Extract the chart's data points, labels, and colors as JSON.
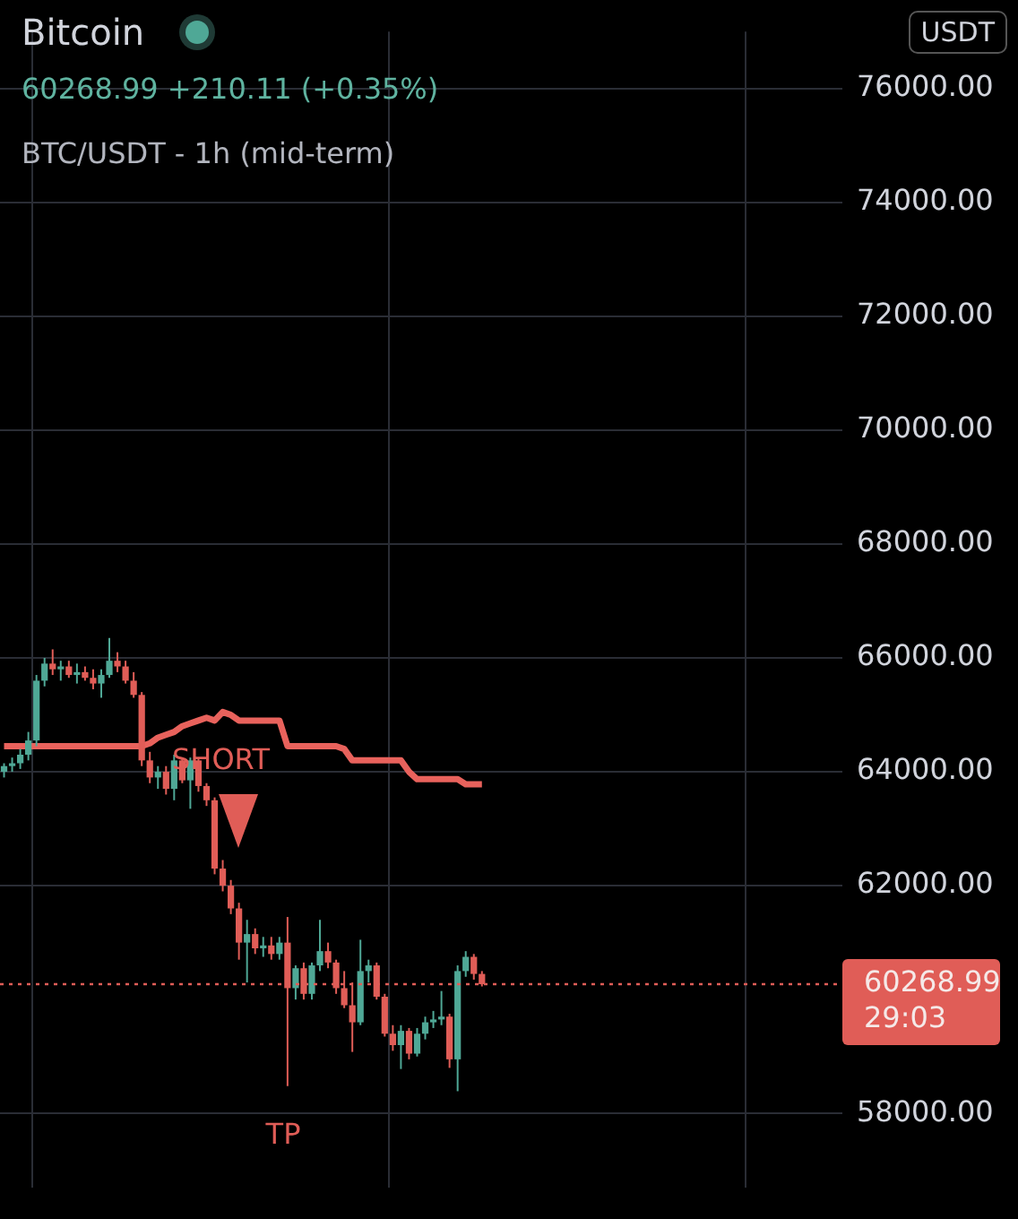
{
  "chart_data": {
    "type": "candlestick",
    "title": "Bitcoin",
    "subtitle": "60268.99 +210.11 (+0.35%)",
    "annotations": [
      "BTC/USDT - 1h (mid-term)",
      "SHORT",
      "TP",
      "USDT",
      "29:03"
    ],
    "categories": [
      null,
      null,
      null,
      null,
      null,
      null,
      null,
      null,
      null,
      null,
      null,
      null,
      null,
      null,
      null,
      null,
      null,
      null,
      null,
      null,
      null,
      null,
      null,
      null,
      null,
      null,
      null,
      null,
      null,
      null,
      null,
      null,
      null,
      null,
      null,
      null,
      null,
      null,
      null,
      null,
      null,
      null,
      null,
      null,
      null,
      null,
      null,
      null,
      null,
      null,
      null,
      null,
      null,
      null,
      null,
      null,
      null,
      null,
      null,
      null,
      null,
      null,
      null,
      null,
      null,
      null,
      null,
      null,
      null,
      null,
      null,
      null,
      null,
      null,
      null,
      null,
      null,
      null,
      null,
      null,
      null,
      null,
      null,
      null,
      null,
      null,
      null,
      null,
      null,
      null,
      null,
      null,
      null,
      null,
      null,
      null,
      null,
      null,
      null,
      null,
      null,
      null,
      null,
      null
    ],
    "ohlc": [
      [
        64000,
        64150,
        63900,
        64100
      ],
      [
        64100,
        64250,
        64000,
        64150
      ],
      [
        64150,
        64400,
        64050,
        64300
      ],
      [
        64300,
        64700,
        64200,
        64550
      ],
      [
        64550,
        65700,
        64450,
        65600
      ],
      [
        65600,
        66000,
        65500,
        65900
      ],
      [
        65900,
        66150,
        65700,
        65800
      ],
      [
        65800,
        65950,
        65600,
        65850
      ],
      [
        65850,
        65950,
        65650,
        65700
      ],
      [
        65700,
        65900,
        65550,
        65750
      ],
      [
        65750,
        65850,
        65600,
        65650
      ],
      [
        65650,
        65800,
        65450,
        65550
      ],
      [
        65550,
        65800,
        65300,
        65700
      ],
      [
        65700,
        66350,
        65650,
        65950
      ],
      [
        65950,
        66100,
        65750,
        65850
      ],
      [
        65850,
        65950,
        65550,
        65600
      ],
      [
        65600,
        65750,
        65300,
        65350
      ],
      [
        65350,
        65400,
        64100,
        64200
      ],
      [
        64200,
        64350,
        63800,
        63900
      ],
      [
        63900,
        64100,
        63700,
        64000
      ],
      [
        64000,
        64100,
        63600,
        63700
      ],
      [
        63700,
        64300,
        63500,
        64200
      ],
      [
        64200,
        64250,
        63800,
        63850
      ],
      [
        63850,
        64250,
        63350,
        64200
      ],
      [
        64200,
        64250,
        63650,
        63750
      ],
      [
        63750,
        63800,
        63400,
        63500
      ],
      [
        63500,
        63550,
        62200,
        62300
      ],
      [
        62300,
        62450,
        61900,
        62000
      ],
      [
        62000,
        62100,
        61500,
        61600
      ],
      [
        61600,
        61700,
        60700,
        61000
      ],
      [
        61000,
        61400,
        60300,
        61150
      ],
      [
        61150,
        61250,
        60800,
        60900
      ],
      [
        60900,
        61100,
        60750,
        60950
      ],
      [
        60950,
        61100,
        60700,
        60800
      ],
      [
        60800,
        61100,
        60700,
        61000
      ],
      [
        61000,
        61450,
        58480,
        60200
      ],
      [
        60200,
        60600,
        60000,
        60550
      ],
      [
        60550,
        60650,
        60000,
        60100
      ],
      [
        60100,
        60650,
        60000,
        60600
      ],
      [
        60600,
        61400,
        60500,
        60850
      ],
      [
        60850,
        61000,
        60550,
        60650
      ],
      [
        60650,
        60700,
        60100,
        60200
      ],
      [
        60200,
        60500,
        59850,
        59900
      ],
      [
        59900,
        60300,
        59080,
        59600
      ],
      [
        59600,
        61050,
        59550,
        60500
      ],
      [
        60500,
        60700,
        60300,
        60600
      ],
      [
        60600,
        60650,
        60000,
        60050
      ],
      [
        60050,
        60100,
        59350,
        59400
      ],
      [
        59400,
        59550,
        59100,
        59200
      ],
      [
        59200,
        59550,
        58780,
        59450
      ],
      [
        59450,
        59500,
        58950,
        59050
      ],
      [
        59050,
        59500,
        59000,
        59400
      ],
      [
        59400,
        59700,
        59300,
        59600
      ],
      [
        59600,
        59800,
        59500,
        59650
      ],
      [
        59650,
        60150,
        59550,
        59700
      ],
      [
        59700,
        59750,
        58800,
        58950
      ],
      [
        58950,
        60600,
        58390,
        60500
      ],
      [
        60500,
        60850,
        60400,
        60750
      ],
      [
        60750,
        60800,
        60350,
        60450
      ],
      [
        60450,
        60500,
        60230,
        60268.99
      ],
      null,
      null,
      null,
      null,
      null,
      null,
      null,
      null,
      null,
      null,
      null,
      null,
      null,
      null,
      null,
      null,
      null,
      null,
      null,
      null,
      null,
      null,
      null,
      null,
      null,
      null,
      null,
      null,
      null,
      null,
      null,
      null,
      null,
      null,
      null,
      null,
      null,
      null,
      null,
      null,
      null,
      null,
      null,
      null
    ],
    "colors": [
      "#4fa896",
      "#4fa896",
      "#4fa896",
      "#4fa896",
      "#4fa896",
      "#4fa896",
      "#e05d57",
      "#4fa896",
      "#e05d57",
      "#4fa896",
      "#e05d57",
      "#e05d57",
      "#4fa896",
      "#4fa896",
      "#e05d57",
      "#e05d57",
      "#e05d57",
      "#e05d57",
      "#e05d57",
      "#4fa896",
      "#e05d57",
      "#4fa896",
      "#e05d57",
      "#4fa896",
      "#e05d57",
      "#e05d57",
      "#e05d57",
      "#e05d57",
      "#e05d57",
      "#e05d57",
      "#4fa896",
      "#e05d57",
      "#4fa896",
      "#e05d57",
      "#4fa896",
      "#e05d57",
      "#4fa896",
      "#e05d57",
      "#4fa896",
      "#4fa896",
      "#e05d57",
      "#e05d57",
      "#e05d57",
      "#e05d57",
      "#4fa896",
      "#4fa896",
      "#e05d57",
      "#e05d57",
      "#e05d57",
      "#4fa896",
      "#e05d57",
      "#4fa896",
      "#4fa896",
      "#4fa896",
      "#4fa896",
      "#e05d57",
      "#4fa896",
      "#4fa896",
      "#e05d57",
      "#e05d57",
      null,
      null,
      null,
      null,
      null,
      null,
      null,
      null,
      null,
      null,
      null,
      null,
      null,
      null,
      null,
      null,
      null,
      null,
      null,
      null,
      null,
      null,
      null,
      null,
      null,
      null,
      null,
      null,
      null,
      null,
      null,
      null,
      null,
      null,
      null,
      null,
      null,
      null,
      null,
      null,
      null,
      null,
      null,
      null
    ],
    "series": [
      {
        "type": "line",
        "color": "#e8625c",
        "values": [
          64450,
          64450,
          64450,
          64450,
          64450,
          64450,
          64450,
          64450,
          64450,
          64450,
          64450,
          64450,
          64450,
          64450,
          64450,
          64450,
          64450,
          64450,
          64500,
          64600,
          64650,
          64700,
          64800,
          64850,
          64900,
          64950,
          64900,
          65050,
          65000,
          64900,
          64900,
          64900,
          64900,
          64900,
          64900,
          64450,
          64450,
          64450,
          64450,
          64450,
          64450,
          64450,
          64400,
          64200,
          64200,
          64200,
          64200,
          64200,
          64200,
          64200,
          64000,
          63870,
          63870,
          63870,
          63870,
          63870,
          63870,
          63780,
          63780,
          63780,
          null,
          null,
          null,
          null,
          null,
          null,
          null,
          null,
          null,
          null,
          null,
          null,
          null,
          null,
          null,
          null,
          null,
          null,
          null,
          null,
          null,
          null,
          null,
          null,
          null,
          null,
          null,
          null,
          null,
          null,
          null,
          null,
          null,
          null,
          null,
          null,
          null,
          null,
          null,
          null,
          null,
          null,
          null,
          null
        ]
      }
    ],
    "ylim": [
      56700,
      77000
    ],
    "yticks": [
      {
        "value": 58000,
        "label": "58000.00"
      },
      {
        "value": 62000,
        "label": "62000.00"
      },
      {
        "value": 64000,
        "label": "64000.00"
      },
      {
        "value": 66000,
        "label": "66000.00"
      },
      {
        "value": 68000,
        "label": "68000.00"
      },
      {
        "value": 70000,
        "label": "70000.00"
      },
      {
        "value": 72000,
        "label": "72000.00"
      },
      {
        "value": 74000,
        "label": "74000.00"
      },
      {
        "value": 76000,
        "label": "76000.00"
      }
    ],
    "ref_lines": [
      {
        "axis": "y",
        "value": 60268.99,
        "label": "60268.99",
        "color": "#e05d57",
        "line_style": "dotted"
      }
    ],
    "grid": true,
    "legend": false,
    "tick_labels": "y"
  }
}
